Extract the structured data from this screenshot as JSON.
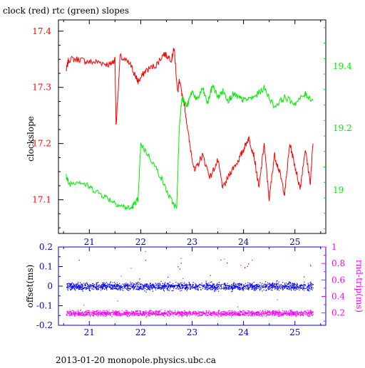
{
  "title": "clock (red) rtc (green) slopes",
  "footer": "2013-01-20 monopole.physics.ubc.ca",
  "colors": {
    "clock": "#ff0000",
    "rtc": "#00ee00",
    "offset": "#0000ff",
    "rndtrip": "#ff00ff",
    "axis": "#000000",
    "bottom_ticks": "#0000cc"
  },
  "chart_data": [
    {
      "type": "line",
      "title": "clock (red) rtc (green) slopes",
      "xlim": [
        20.4,
        25.6
      ],
      "x_ticks": [
        21,
        22,
        23,
        24,
        25
      ],
      "grid": false,
      "left_axis": {
        "label": "clockslope",
        "ylim": [
          17.04,
          17.42
        ],
        "ticks": [
          "17.1",
          "17.2",
          "17.3",
          "17.4"
        ],
        "tick_values": [
          17.1,
          17.2,
          17.3,
          17.4
        ]
      },
      "right_axis": {
        "label": "",
        "ylim": [
          18.86,
          19.55
        ],
        "ticks": [
          "19",
          "19.2",
          "19.4"
        ],
        "tick_values": [
          19.0,
          19.2,
          19.4
        ]
      },
      "series": [
        {
          "name": "clock",
          "axis": "left",
          "x": [
            20.55,
            20.6,
            20.8,
            21.0,
            21.2,
            21.4,
            21.5,
            21.52,
            21.6,
            21.8,
            21.9,
            21.95,
            22.1,
            22.3,
            22.45,
            22.6,
            22.65,
            22.72,
            22.75,
            22.85,
            22.95,
            23.05,
            23.2,
            23.35,
            23.5,
            23.6,
            23.75,
            23.9,
            24.0,
            24.1,
            24.2,
            24.3,
            24.4,
            24.5,
            24.6,
            24.7,
            24.8,
            24.9,
            25.0,
            25.1,
            25.2,
            25.3,
            25.35
          ],
          "values": [
            17.33,
            17.35,
            17.35,
            17.345,
            17.345,
            17.34,
            17.35,
            17.23,
            17.355,
            17.34,
            17.32,
            17.31,
            17.33,
            17.34,
            17.36,
            17.35,
            17.37,
            17.29,
            17.31,
            17.27,
            17.2,
            17.15,
            17.18,
            17.14,
            17.17,
            17.12,
            17.15,
            17.17,
            17.19,
            17.21,
            17.18,
            17.12,
            17.2,
            17.1,
            17.18,
            17.15,
            17.11,
            17.2,
            17.16,
            17.12,
            17.19,
            17.13,
            17.2
          ]
        },
        {
          "name": "rtc",
          "axis": "right",
          "x": [
            20.55,
            20.6,
            20.8,
            21.0,
            21.2,
            21.4,
            21.6,
            21.8,
            21.9,
            21.95,
            22.0,
            22.2,
            22.4,
            22.55,
            22.7,
            22.75,
            22.8,
            22.9,
            23.0,
            23.1,
            23.2,
            23.3,
            23.4,
            23.5,
            23.6,
            23.7,
            23.8,
            23.9,
            24.0,
            24.2,
            24.4,
            24.6,
            24.8,
            25.0,
            25.2,
            25.35
          ],
          "values": [
            19.05,
            19.02,
            19.03,
            19.01,
            18.99,
            18.97,
            18.95,
            18.94,
            18.96,
            18.97,
            19.15,
            19.1,
            19.04,
            18.98,
            18.94,
            19.2,
            19.3,
            19.27,
            19.32,
            19.29,
            19.33,
            19.28,
            19.34,
            19.3,
            19.32,
            19.29,
            19.31,
            19.3,
            19.29,
            19.3,
            19.33,
            19.27,
            19.3,
            19.28,
            19.31,
            19.29
          ]
        }
      ]
    },
    {
      "type": "scatter",
      "title": "",
      "xlim": [
        20.4,
        25.6
      ],
      "x_ticks": [
        21,
        22,
        23,
        24,
        25
      ],
      "grid": false,
      "left_axis": {
        "label": "offset(ms)",
        "ylim": [
          -0.2,
          0.2
        ],
        "ticks": [
          "-0.2",
          "-0.1",
          "0",
          "0.1",
          "0.2"
        ],
        "tick_values": [
          -0.2,
          -0.1,
          0.0,
          0.1,
          0.2
        ]
      },
      "right_axis": {
        "label": "rnd-trip(ms)",
        "ylim": [
          0.05,
          1.0
        ],
        "ticks": [
          "0.2",
          "0.4",
          "0.6",
          "0.8",
          "1"
        ],
        "tick_values": [
          0.2,
          0.4,
          0.6,
          0.8,
          1.0
        ]
      },
      "series": [
        {
          "name": "offset",
          "axis": "left",
          "x_range": [
            20.55,
            25.35
          ],
          "center": 0.0,
          "spread": 0.015
        },
        {
          "name": "rnd-trip",
          "axis": "right",
          "x_range": [
            20.55,
            25.35
          ],
          "center": 0.2,
          "spread": 0.025
        }
      ]
    }
  ]
}
